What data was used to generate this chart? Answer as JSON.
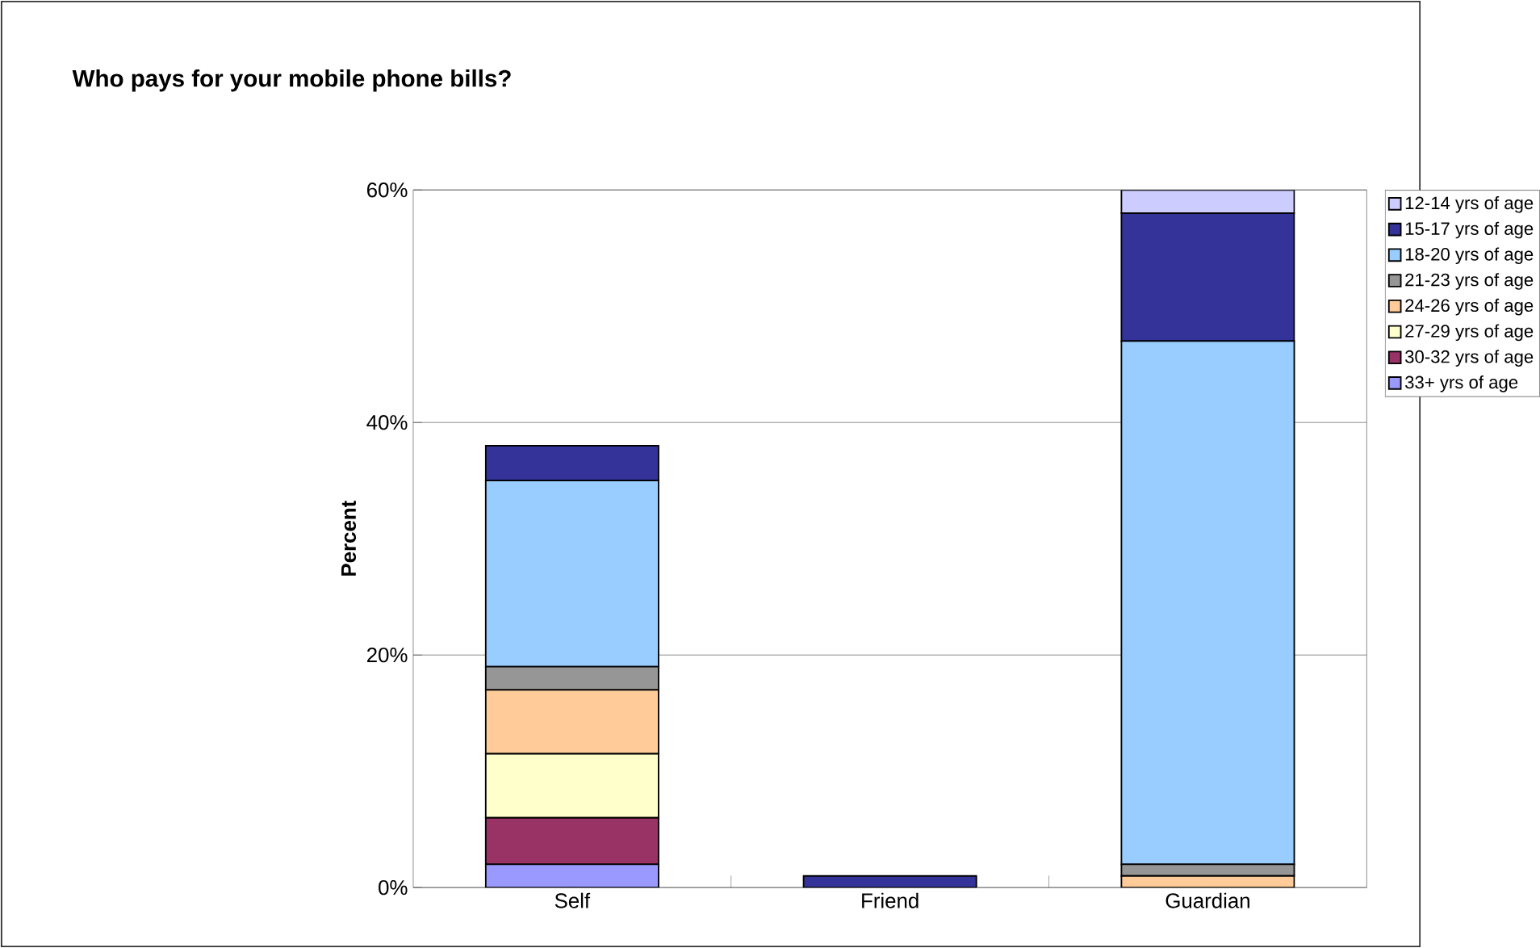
{
  "chart_data": {
    "type": "bar",
    "title": "Who pays for your mobile phone bills?",
    "ylabel": "Percent",
    "categories": [
      "Self",
      "Friend",
      "Guardian"
    ],
    "stacked": true,
    "series": [
      {
        "name": "33+ yrs of age",
        "color": "#9999ff",
        "values": [
          2,
          0,
          0
        ]
      },
      {
        "name": "30-32 yrs of age",
        "color": "#993366",
        "values": [
          4,
          0,
          0
        ]
      },
      {
        "name": "27-29 yrs of age",
        "color": "#ffffcc",
        "values": [
          5.5,
          0,
          0
        ]
      },
      {
        "name": "24-26 yrs of age",
        "color": "#ffcc99",
        "values": [
          5.5,
          0,
          1
        ]
      },
      {
        "name": "21-23 yrs of age",
        "color": "#969696",
        "values": [
          2,
          0,
          1
        ]
      },
      {
        "name": "18-20 yrs of age",
        "color": "#99ccff",
        "values": [
          16,
          0,
          45
        ]
      },
      {
        "name": "15-17 yrs of age",
        "color": "#333399",
        "values": [
          3,
          1,
          11
        ]
      },
      {
        "name": "12-14 yrs of age",
        "color": "#ccccff",
        "values": [
          0,
          0,
          2
        ]
      }
    ],
    "ylim": [
      0,
      60
    ],
    "yticks": [
      {
        "value": 0,
        "label": "0%"
      },
      {
        "value": 20,
        "label": "20%"
      },
      {
        "value": 40,
        "label": "40%"
      },
      {
        "value": 60,
        "label": "60%"
      }
    ],
    "grid": "y",
    "legend": "right"
  }
}
